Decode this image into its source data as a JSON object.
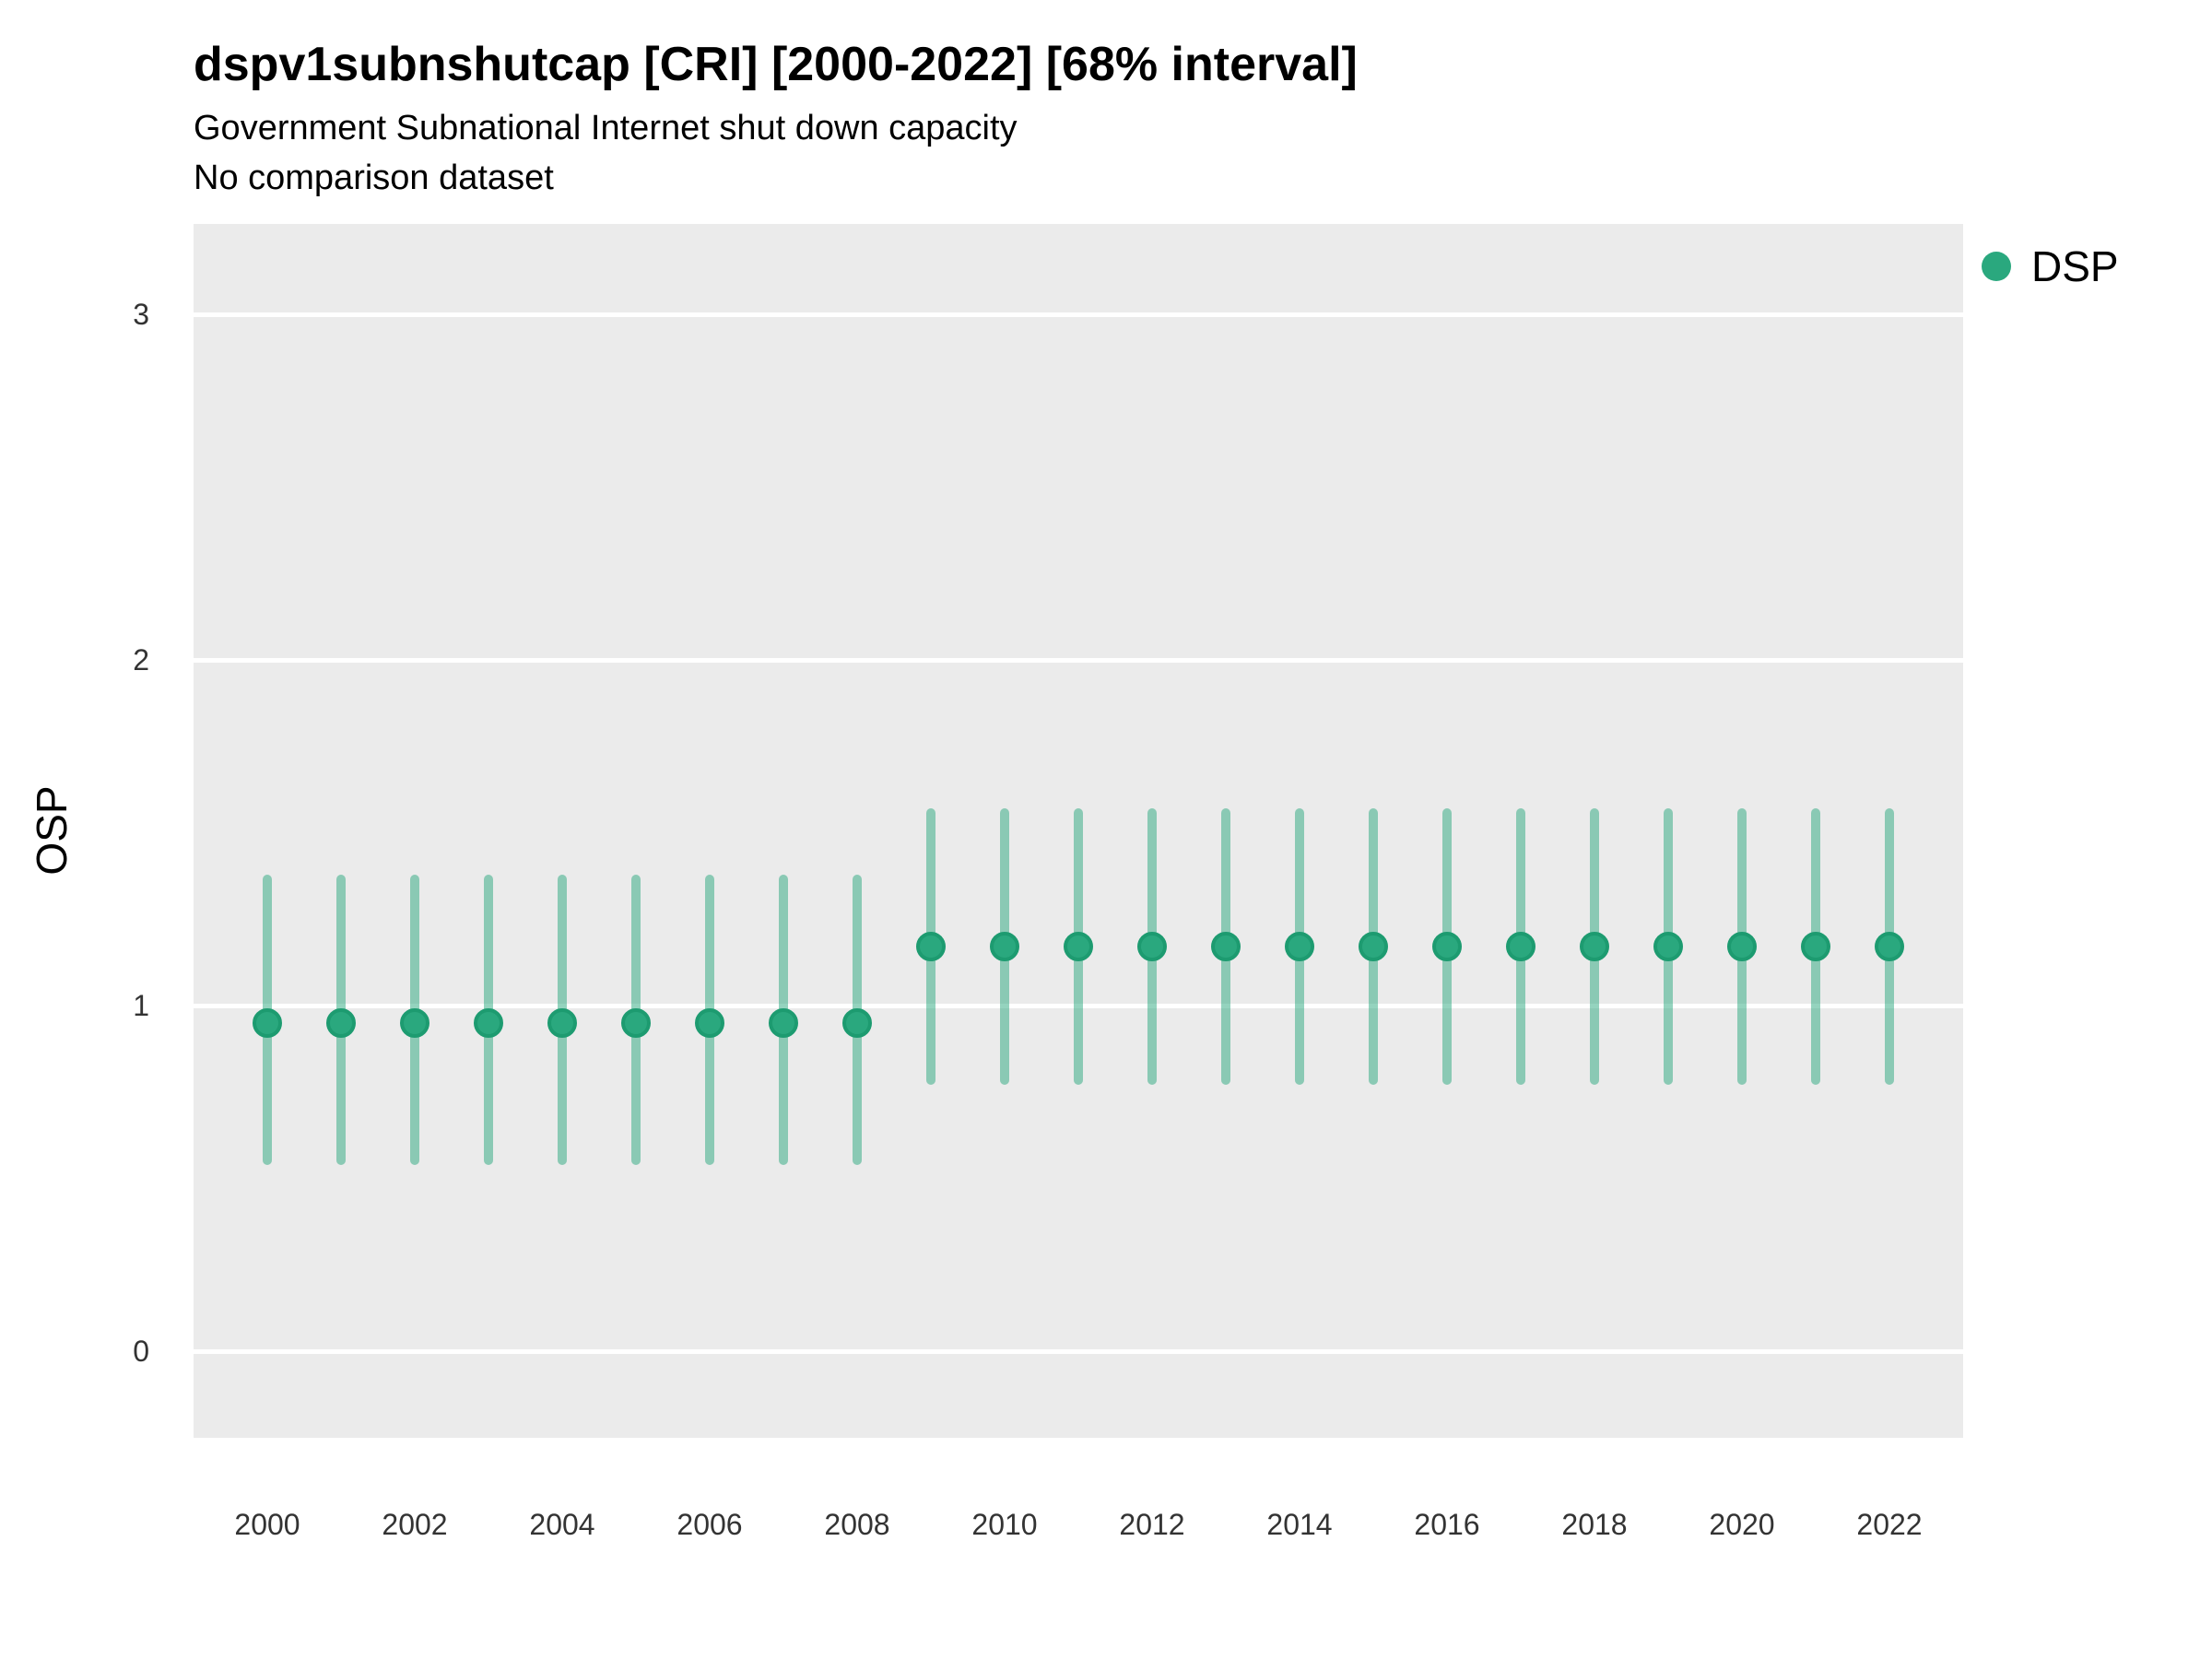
{
  "chart_data": {
    "type": "pointrange",
    "title": "dspv1subnshutcap [CRI] [2000-2022] [68% interval]",
    "subtitle": "Government Subnational Internet shut down capacity",
    "note": "No comparison dataset",
    "xlabel": "",
    "ylabel": "OSP",
    "interval": "68%",
    "legend": {
      "label": "DSP",
      "color": "#2aa87e"
    },
    "x_tick_labels": [
      "2000",
      "2002",
      "2004",
      "2006",
      "2008",
      "2010",
      "2012",
      "2014",
      "2016",
      "2018",
      "2020",
      "2022"
    ],
    "y_tick_labels": [
      "0",
      "1",
      "2",
      "3"
    ],
    "ylim": [
      -0.25,
      3.25
    ],
    "grid": "major horizontal white lines on gray panel",
    "legend_position": "right-top",
    "series": [
      {
        "name": "DSP",
        "color": "#2aa87e",
        "points": [
          {
            "year": 2000,
            "mid": 0.95,
            "lo": 0.54,
            "hi": 1.38
          },
          {
            "year": 2001,
            "mid": 0.95,
            "lo": 0.54,
            "hi": 1.38
          },
          {
            "year": 2002,
            "mid": 0.95,
            "lo": 0.54,
            "hi": 1.38
          },
          {
            "year": 2003,
            "mid": 0.95,
            "lo": 0.54,
            "hi": 1.38
          },
          {
            "year": 2004,
            "mid": 0.95,
            "lo": 0.54,
            "hi": 1.38
          },
          {
            "year": 2005,
            "mid": 0.95,
            "lo": 0.54,
            "hi": 1.38
          },
          {
            "year": 2006,
            "mid": 0.95,
            "lo": 0.54,
            "hi": 1.38
          },
          {
            "year": 2007,
            "mid": 0.95,
            "lo": 0.54,
            "hi": 1.38
          },
          {
            "year": 2008,
            "mid": 0.95,
            "lo": 0.54,
            "hi": 1.38
          },
          {
            "year": 2009,
            "mid": 1.17,
            "lo": 0.77,
            "hi": 1.57
          },
          {
            "year": 2010,
            "mid": 1.17,
            "lo": 0.77,
            "hi": 1.57
          },
          {
            "year": 2011,
            "mid": 1.17,
            "lo": 0.77,
            "hi": 1.57
          },
          {
            "year": 2012,
            "mid": 1.17,
            "lo": 0.77,
            "hi": 1.57
          },
          {
            "year": 2013,
            "mid": 1.17,
            "lo": 0.77,
            "hi": 1.57
          },
          {
            "year": 2014,
            "mid": 1.17,
            "lo": 0.77,
            "hi": 1.57
          },
          {
            "year": 2015,
            "mid": 1.17,
            "lo": 0.77,
            "hi": 1.57
          },
          {
            "year": 2016,
            "mid": 1.17,
            "lo": 0.77,
            "hi": 1.57
          },
          {
            "year": 2017,
            "mid": 1.17,
            "lo": 0.77,
            "hi": 1.57
          },
          {
            "year": 2018,
            "mid": 1.17,
            "lo": 0.77,
            "hi": 1.57
          },
          {
            "year": 2019,
            "mid": 1.17,
            "lo": 0.77,
            "hi": 1.57
          },
          {
            "year": 2020,
            "mid": 1.17,
            "lo": 0.77,
            "hi": 1.57
          },
          {
            "year": 2021,
            "mid": 1.17,
            "lo": 0.77,
            "hi": 1.57
          },
          {
            "year": 2022,
            "mid": 1.17,
            "lo": 0.77,
            "hi": 1.57
          }
        ]
      }
    ]
  }
}
